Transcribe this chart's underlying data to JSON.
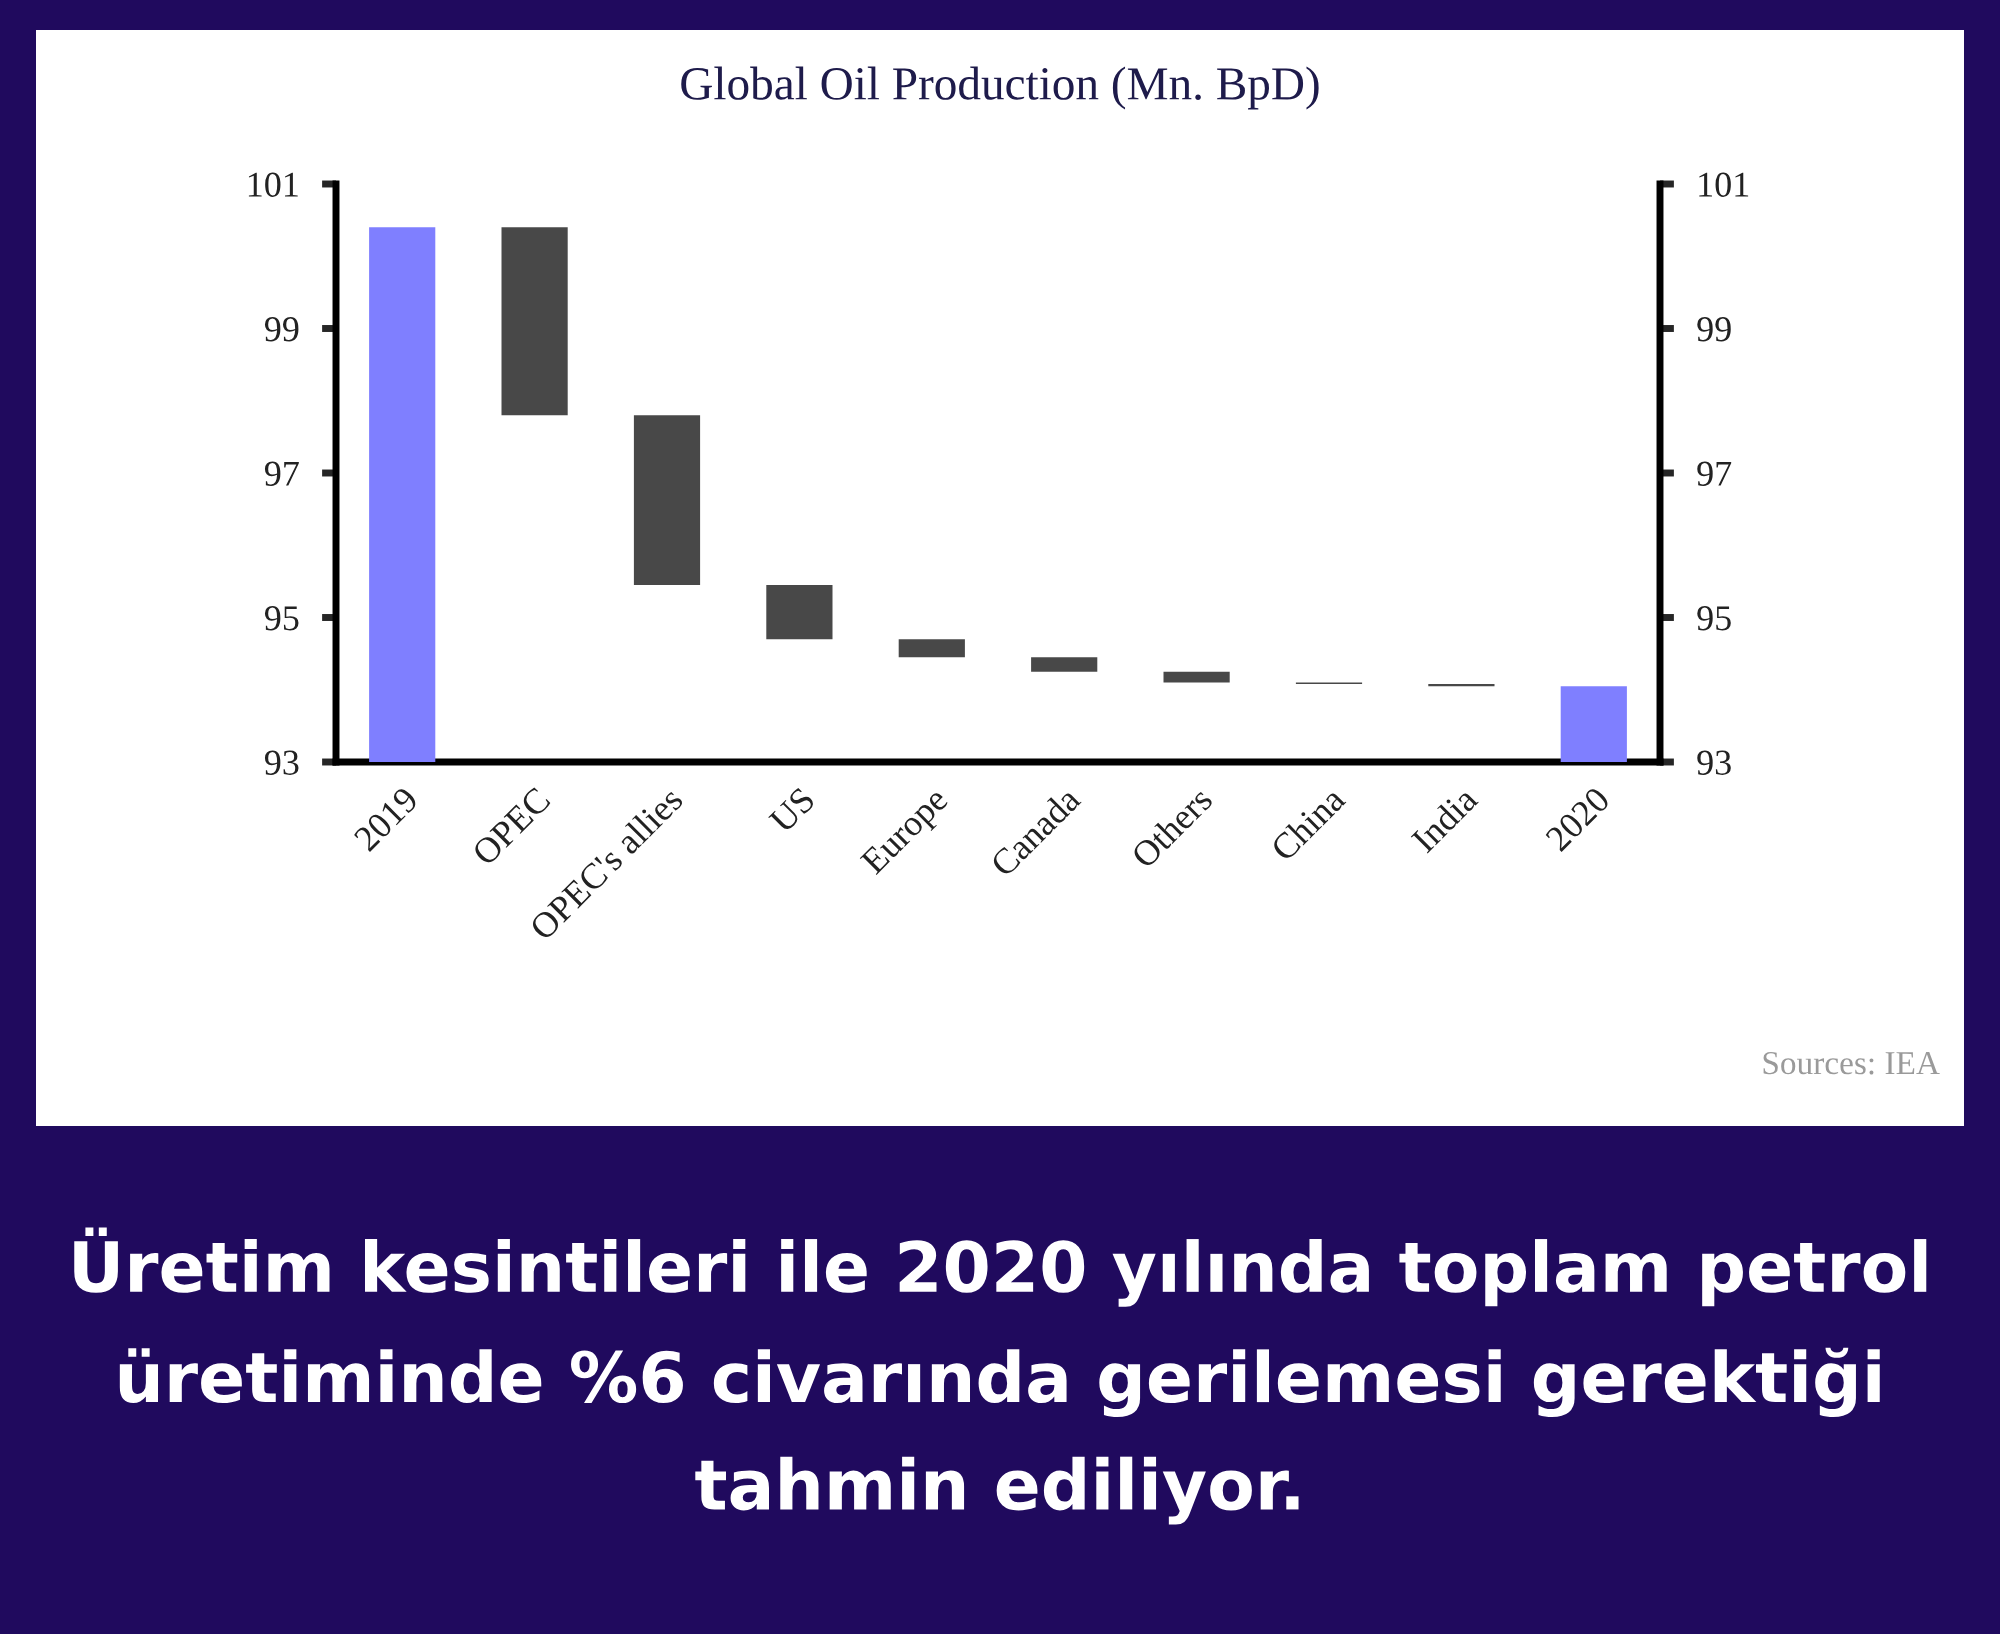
{
  "chart_data": {
    "type": "bar",
    "title": "Global Oil Production (Mn. BpD)",
    "categories": [
      "2019",
      "OPEC",
      "OPEC's allies",
      "US",
      "Europe",
      "Canada",
      "Others",
      "China",
      "India",
      "2020"
    ],
    "values": [
      100.4,
      -2.6,
      -2.35,
      -0.75,
      -0.25,
      -0.2,
      -0.15,
      -0.02,
      -0.03,
      94.05
    ],
    "base": [
      null,
      100.4,
      97.8,
      95.45,
      94.7,
      94.45,
      94.25,
      94.1,
      94.08,
      null
    ],
    "colors": [
      "#7f7fff",
      "#484848",
      "#484848",
      "#484848",
      "#484848",
      "#484848",
      "#484848",
      "#484848",
      "#484848",
      "#7f7fff"
    ],
    "ylim": [
      93,
      101
    ],
    "yticks": [
      93,
      95,
      97,
      99,
      101
    ],
    "y2lim": [
      93,
      101
    ],
    "y2ticks": [
      93,
      95,
      97,
      99,
      101
    ],
    "annotations": [
      "Sources: IEA",
      "Üretim kesintileri ile 2020 yılında toplam petrol üretiminde %6 civarında gerilemesi gerektiği tahmin ediliyor."
    ]
  }
}
